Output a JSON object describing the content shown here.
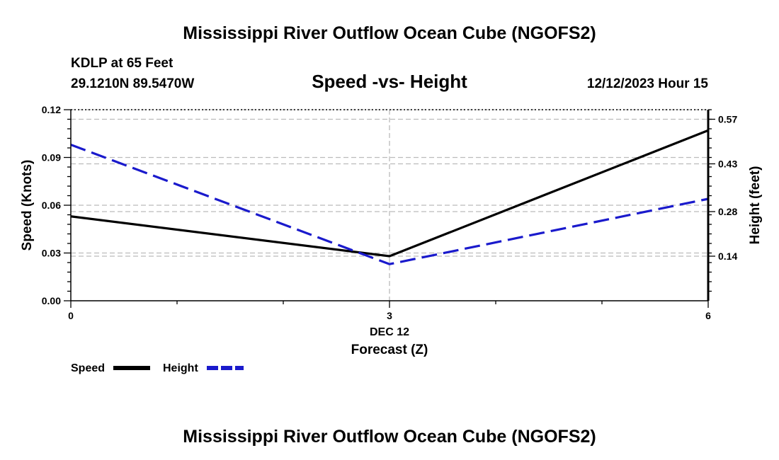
{
  "chart_data": {
    "type": "line",
    "title": "Mississippi River Outflow Ocean Cube (NGOFS2)",
    "subtitle": "Speed -vs- Height",
    "station": "KDLP at 65 Feet",
    "location": "29.1210N  89.5470W",
    "datetime": "12/12/2023 Hour 15",
    "footer_title": "Mississippi River Outflow Ocean Cube (NGOFS2)",
    "xlabel": "Forecast (Z)",
    "x_date_label": "DEC 12",
    "x": [
      0,
      3,
      6
    ],
    "x_tick_labels": [
      "0",
      "3",
      "6"
    ],
    "xlim": [
      0,
      6
    ],
    "ylabel_left": "Speed (Knots)",
    "ylim_left": [
      0,
      0.12
    ],
    "y_ticks_left": [
      "0.00",
      "0.03",
      "0.06",
      "0.09",
      "0.12"
    ],
    "ylabel_right": "Height (feet)",
    "ylim_right": [
      0,
      0.6
    ],
    "y_ticks_right": [
      {
        "label": "0.14",
        "value": 0.14
      },
      {
        "label": "0.28",
        "value": 0.28
      },
      {
        "label": "0.43",
        "value": 0.43
      },
      {
        "label": "0.57",
        "value": 0.57
      }
    ],
    "series": [
      {
        "name": "Speed",
        "axis": "left",
        "color": "#000000",
        "dashed": false,
        "values": [
          0.053,
          0.028,
          0.107
        ]
      },
      {
        "name": "Height",
        "axis": "right",
        "color": "#1a1acc",
        "dashed": true,
        "values": [
          0.49,
          0.115,
          0.32
        ]
      }
    ],
    "legend": [
      "Speed",
      "Height"
    ],
    "grid_color": "#bbbbbb"
  }
}
